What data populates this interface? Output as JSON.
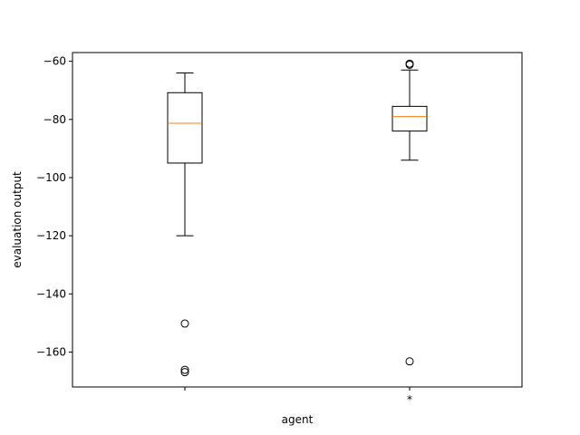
{
  "chart_data": {
    "type": "boxplot",
    "title": "",
    "xlabel": "agent",
    "ylabel": "evaluation output",
    "ylim": [
      -172,
      -57
    ],
    "yticks": [
      -60,
      -80,
      -100,
      -120,
      -140,
      -160
    ],
    "categories": [
      "",
      "*"
    ],
    "grid": false,
    "legend": "none",
    "colors": {
      "median": "#ff7f0e",
      "box": "#000000",
      "flier": "#000000"
    },
    "boxes": [
      {
        "name": "",
        "whisker_low": -120,
        "q1": -95,
        "median": -81.3,
        "q3": -70.8,
        "whisker_high": -64,
        "fliers": [
          -150.2,
          -166.1,
          -166.9
        ]
      },
      {
        "name": "*",
        "whisker_low": -94,
        "q1": -84,
        "median": -79,
        "q3": -75.5,
        "whisker_high": -63,
        "fliers": [
          -60.8,
          -61.2,
          -163.2
        ]
      }
    ]
  }
}
